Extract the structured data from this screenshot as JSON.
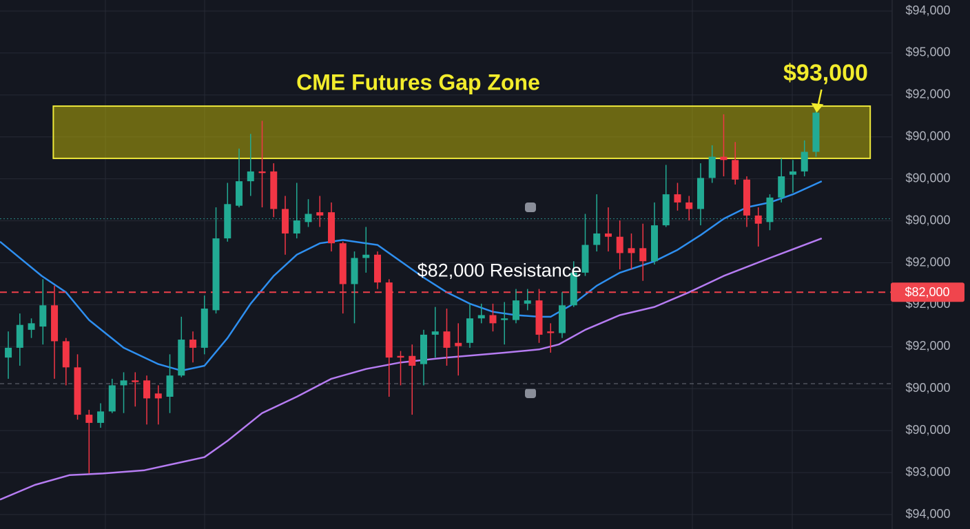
{
  "chart_data": {
    "type": "candlestick",
    "title": "CME Futures Gap Zone",
    "ylim": [
      67500,
      99900
    ],
    "xlim": [
      -0.72,
      76.6
    ],
    "y_axis_labels": [
      "$94,000",
      "$95,000",
      "$92,000",
      "$90,000",
      "$90,000",
      "$90,000",
      "$92,000",
      "$92,000",
      "$92,000",
      "$90,000",
      "$90,000",
      "$93,000",
      "$94,000"
    ],
    "up_color": "#22ab94",
    "down_color": "#f23645",
    "ohlc": [
      [
        78000,
        79600,
        76700,
        78600
      ],
      [
        78600,
        80700,
        77500,
        80000
      ],
      [
        79700,
        80400,
        79200,
        80100
      ],
      [
        79900,
        82800,
        78800,
        81200
      ],
      [
        81200,
        82400,
        76700,
        79000
      ],
      [
        79000,
        79200,
        76300,
        77400
      ],
      [
        77400,
        78200,
        74200,
        74500
      ],
      [
        74500,
        74800,
        70900,
        74000
      ],
      [
        74000,
        75200,
        73700,
        74700
      ],
      [
        74700,
        76700,
        74600,
        76300
      ],
      [
        76300,
        77100,
        74600,
        76600
      ],
      [
        76600,
        77100,
        75000,
        76500
      ],
      [
        76600,
        76900,
        73900,
        75500
      ],
      [
        75800,
        76300,
        73900,
        75500
      ],
      [
        75600,
        78200,
        74600,
        76900
      ],
      [
        76900,
        80500,
        76800,
        79100
      ],
      [
        79100,
        79600,
        77700,
        78600
      ],
      [
        78600,
        81800,
        78200,
        81000
      ],
      [
        80900,
        87200,
        80700,
        85300
      ],
      [
        85300,
        88700,
        85100,
        87400
      ],
      [
        87300,
        90800,
        87200,
        88800
      ],
      [
        88800,
        91700,
        87900,
        89400
      ],
      [
        89400,
        92500,
        87200,
        89300
      ],
      [
        89400,
        89900,
        86600,
        87100
      ],
      [
        87100,
        87900,
        84300,
        85600
      ],
      [
        85600,
        88700,
        85300,
        86400
      ],
      [
        86300,
        87700,
        86000,
        86800
      ],
      [
        86900,
        87900,
        86000,
        86700
      ],
      [
        86900,
        87500,
        84500,
        85000
      ],
      [
        85000,
        85100,
        80700,
        82500
      ],
      [
        82500,
        84500,
        80100,
        84100
      ],
      [
        84100,
        86000,
        83200,
        84300
      ],
      [
        84300,
        84500,
        82200,
        82600
      ],
      [
        82600,
        82800,
        75600,
        78000
      ],
      [
        78100,
        78400,
        76300,
        78000
      ],
      [
        78100,
        78800,
        74500,
        77500
      ],
      [
        77600,
        79700,
        76300,
        79400
      ],
      [
        79400,
        81100,
        78000,
        79600
      ],
      [
        79600,
        81000,
        77500,
        78600
      ],
      [
        78900,
        80100,
        76900,
        78700
      ],
      [
        78900,
        81300,
        78600,
        80400
      ],
      [
        80400,
        81300,
        80100,
        80600
      ],
      [
        80600,
        81300,
        79600,
        80100
      ],
      [
        80300,
        81400,
        78800,
        80400
      ],
      [
        80300,
        82200,
        80100,
        81500
      ],
      [
        81300,
        82200,
        80900,
        81500
      ],
      [
        81500,
        82200,
        78900,
        79400
      ],
      [
        79600,
        80100,
        78300,
        79500
      ],
      [
        79500,
        82000,
        79200,
        81200
      ],
      [
        81200,
        83900,
        81100,
        83200
      ],
      [
        83200,
        86800,
        83000,
        84900
      ],
      [
        84900,
        88000,
        84500,
        85600
      ],
      [
        85600,
        87200,
        84500,
        85400
      ],
      [
        85400,
        86400,
        83400,
        84400
      ],
      [
        84700,
        85600,
        83400,
        84400
      ],
      [
        84700,
        86200,
        82700,
        83900
      ],
      [
        83900,
        87500,
        83700,
        86100
      ],
      [
        86100,
        89800,
        86000,
        88000
      ],
      [
        88000,
        88700,
        87000,
        87500
      ],
      [
        87500,
        87900,
        86400,
        87100
      ],
      [
        87100,
        89900,
        86100,
        89000
      ],
      [
        89000,
        91000,
        88700,
        90300
      ],
      [
        90300,
        92900,
        89100,
        90100
      ],
      [
        90100,
        91200,
        88600,
        88900
      ],
      [
        88900,
        89100,
        86000,
        86700
      ],
      [
        86700,
        87200,
        84800,
        86200
      ],
      [
        86300,
        88000,
        85800,
        87800
      ],
      [
        87800,
        90200,
        87500,
        89100
      ],
      [
        89200,
        90100,
        88100,
        89400
      ],
      [
        89400,
        91300,
        89100,
        90600
      ],
      [
        90600,
        93400,
        90300,
        93000
      ]
    ],
    "series": [
      {
        "color": "#2e8ff0",
        "x": [
          -0.72,
          2.9,
          5,
          7,
          10,
          13,
          15,
          17,
          19,
          21,
          23,
          25,
          27,
          29,
          32,
          34,
          36,
          38,
          40,
          42,
          44,
          46,
          47,
          49,
          51,
          53,
          56,
          58,
          60,
          62,
          64,
          66,
          68,
          70.5
        ],
        "values": [
          85100,
          83000,
          82000,
          80300,
          78600,
          77600,
          77200,
          77500,
          79200,
          81300,
          83000,
          84300,
          85000,
          85200,
          84900,
          83900,
          82900,
          82000,
          81300,
          80800,
          80600,
          80500,
          80500,
          81300,
          82400,
          83200,
          83900,
          84600,
          85500,
          86500,
          87200,
          87500,
          88000,
          88800
        ]
      },
      {
        "color": "#b67cf2",
        "x": [
          -0.72,
          2.3,
          5.3,
          8.2,
          11.8,
          17,
          19,
          22,
          25,
          28,
          31,
          34,
          38,
          43,
          46,
          47.7,
          50,
          53,
          56,
          59,
          62,
          66,
          70.5
        ],
        "values": [
          69300,
          70200,
          70800,
          70900,
          71100,
          71900,
          72900,
          74600,
          75600,
          76700,
          77300,
          77700,
          78000,
          78300,
          78500,
          78800,
          79700,
          80600,
          81100,
          82000,
          83000,
          84100,
          85300
        ]
      }
    ],
    "gap_zone": {
      "x": [
        3.9,
        74.7
      ],
      "range": [
        90200,
        93400
      ]
    },
    "reference_lines": [
      86500,
      76400
    ],
    "resistance": {
      "value": 82000,
      "label": "$82,000 Resistance",
      "tag": "$82,000"
    },
    "price_annotation": "$93,000"
  }
}
